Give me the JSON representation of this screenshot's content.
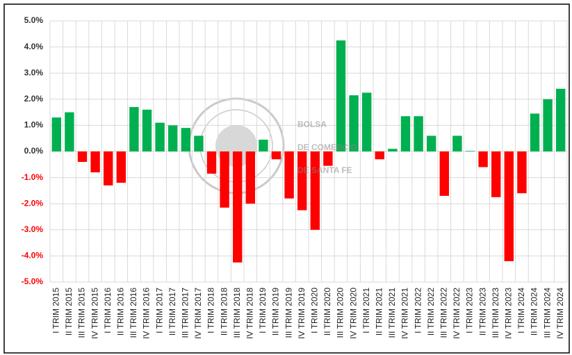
{
  "chart_data": {
    "type": "bar",
    "categories": [
      "I TRIM 2015",
      "II TRIM 2015",
      "III TRIM 2015",
      "IV TRIM 2015",
      "I TRIM 2016",
      "II TRIM 2016",
      "III TRIM 2016",
      "IV TRIM 2016",
      "I TRIM 2017",
      "II TRIM 2017",
      "III TRIM 2017",
      "IV TRIM 2017",
      "I TRIM 2018",
      "II TRIM 2018",
      "III TRIM 2018",
      "IV TRIM 2018",
      "I TRIM 2019",
      "II TRIM 2019",
      "III TRIM 2019",
      "IV TRIM 2019",
      "I TRIM 2020",
      "II TRIM 2020",
      "III TRIM 2020",
      "IV TRIM 2020",
      "I TRIM 2021",
      "II TRIM 2021",
      "III TRIM 2021",
      "IV TRIM 2021",
      "I TRIM 2022",
      "II TRIM 2022",
      "III TRIM 2022",
      "IV TRIM 2022",
      "I TRIM 2023",
      "II TRIM 2023",
      "III TRIM 2023",
      "IV TRIM 2023",
      "I TRIM 2024",
      "II TRIM 2024",
      "III TRIM 2024",
      "IV TRIM 2024"
    ],
    "values": [
      1.3,
      1.5,
      -0.4,
      -0.8,
      -1.3,
      -1.2,
      1.7,
      1.6,
      1.1,
      1.0,
      0.9,
      0.6,
      -0.85,
      -2.15,
      -4.25,
      -2.0,
      0.45,
      -0.3,
      -1.8,
      -2.25,
      -3.0,
      -0.55,
      4.25,
      2.15,
      2.25,
      -0.3,
      0.1,
      1.35,
      1.35,
      0.6,
      -1.7,
      0.6,
      0.02,
      -0.6,
      -1.75,
      -4.2,
      -1.6,
      1.45,
      2.0,
      2.4
    ],
    "positive_color": "#00b050",
    "negative_color": "#ff0000",
    "negative_tick_color": "#ff0000",
    "ylim": [
      -5,
      5
    ],
    "yticks": [
      {
        "value": 5,
        "label": "5.0%"
      },
      {
        "value": 4,
        "label": "4.0%"
      },
      {
        "value": 3,
        "label": "3.0%"
      },
      {
        "value": 2,
        "label": "2.0%"
      },
      {
        "value": 1,
        "label": "1.0%"
      },
      {
        "value": 0,
        "label": "0.0%"
      },
      {
        "value": -1,
        "label": "-1.0%"
      },
      {
        "value": -2,
        "label": "-2.0%"
      },
      {
        "value": -3,
        "label": "-3.0%"
      },
      {
        "value": -4,
        "label": "-4.0%"
      },
      {
        "value": -5,
        "label": "-5.0%"
      }
    ],
    "grid": true,
    "watermark": [
      "BOLSA",
      "DE COMERCIO",
      "DE SANTA FE"
    ]
  }
}
